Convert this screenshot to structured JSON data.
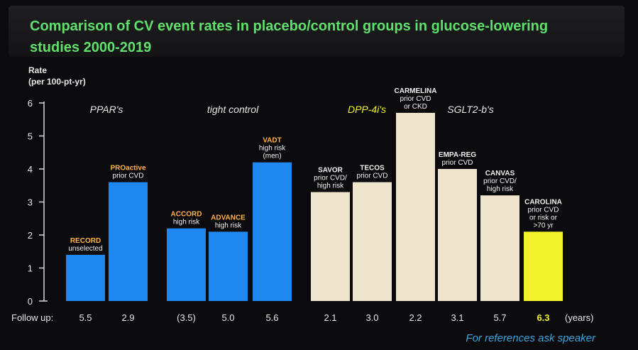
{
  "title": "Comparison of CV event rates in placebo/control groups in glucose-lowering studies 2000-2019",
  "ylabel": "Rate\n(per 100-pt-yr)",
  "followup_label": "Follow up:",
  "followup_unit": "(years)",
  "footer": "For references ask speaker",
  "colors": {
    "title": "#5fe06a",
    "ppar_tight": "#1e88ee",
    "dpp_sglt2": "#efe4cc",
    "carolina": "#f2f22a",
    "label_blue": "#ffb14a",
    "label_beige": "#f0f0f0"
  },
  "groups": [
    {
      "name": "PPAR's",
      "style": "normal"
    },
    {
      "name": "tight control",
      "style": "normal"
    },
    {
      "name": "DPP-4i's",
      "style": "yellow"
    },
    {
      "name": "SGLT2-b's",
      "style": "normal"
    }
  ],
  "chart_data": {
    "type": "bar",
    "ylim": [
      0,
      6
    ],
    "yticks": [
      0,
      1,
      2,
      3,
      4,
      5,
      6
    ],
    "categories": [
      "RECORD",
      "PROactive",
      "ACCORD",
      "ADVANCE",
      "VADT",
      "SAVOR",
      "TECOS",
      "CARMELINA",
      "EMPA-REG",
      "CANVAS",
      "CAROLINA"
    ],
    "values": [
      1.4,
      3.6,
      2.2,
      2.1,
      4.2,
      3.3,
      3.6,
      5.7,
      4.0,
      3.2,
      2.1
    ],
    "bar_labels": [
      [
        "RECORD",
        "unselected"
      ],
      [
        "PROactive",
        "prior CVD"
      ],
      [
        "ACCORD",
        "high risk"
      ],
      [
        "ADVANCE",
        "high risk"
      ],
      [
        "VADT",
        "high risk",
        "(men)"
      ],
      [
        "SAVOR",
        "prior CVD/",
        "high risk"
      ],
      [
        "TECOS",
        "prior CVD"
      ],
      [
        "CARMELINA",
        "prior CVD",
        "or CKD"
      ],
      [
        "EMPA-REG",
        "prior CVD"
      ],
      [
        "CANVAS",
        "prior CVD/",
        "high risk"
      ],
      [
        "CAROLINA",
        "prior CVD",
        "or risk or",
        ">70 yr"
      ]
    ],
    "followup": [
      "5.5",
      "2.9",
      "(3.5)",
      "5.0",
      "5.6",
      "2.1",
      "3.0",
      "2.2",
      "3.1",
      "5.7",
      "6.3"
    ],
    "bar_colors": [
      "blue",
      "blue",
      "blue",
      "blue",
      "blue",
      "beige",
      "beige",
      "beige",
      "beige",
      "beige",
      "yellow"
    ]
  }
}
